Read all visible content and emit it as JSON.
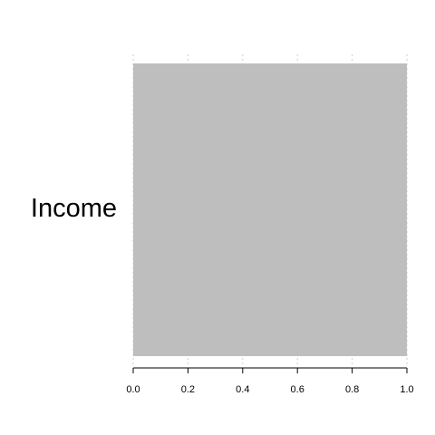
{
  "chart_data": {
    "type": "bar",
    "orientation": "horizontal",
    "categories": [
      "Income"
    ],
    "values": [
      1.0
    ],
    "title": "",
    "xlabel": "",
    "ylabel": "",
    "xlim": [
      0,
      1
    ],
    "xticks": [
      0.0,
      0.2,
      0.4,
      0.6,
      0.8,
      1.0
    ],
    "xtick_labels": [
      "0.0",
      "0.2",
      "0.4",
      "0.6",
      "0.8",
      "1.0"
    ],
    "grid": true,
    "legend": "none",
    "bar_color": "#bebebe",
    "grid_color": "#cccccc"
  }
}
